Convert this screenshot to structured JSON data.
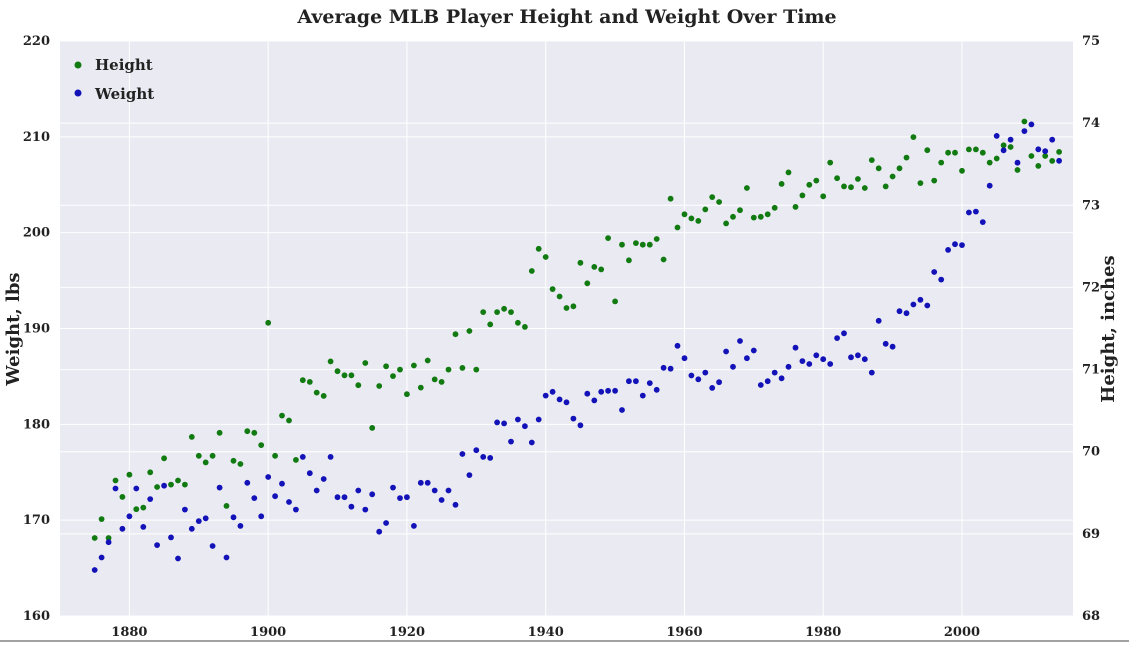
{
  "chart_data": {
    "type": "scatter",
    "title": "Average MLB Player Height and Weight Over Time",
    "xlim": [
      1870,
      2016
    ],
    "x_ticks": [
      1880,
      1900,
      1920,
      1940,
      1960,
      1980,
      2000
    ],
    "y_left": {
      "label": "Weight, lbs",
      "lim": [
        160,
        220
      ],
      "ticks": [
        160,
        170,
        180,
        190,
        200,
        210,
        220
      ]
    },
    "y_right": {
      "label": "Height, inches",
      "lim": [
        68,
        75
      ],
      "ticks": [
        68,
        69,
        70,
        71,
        72,
        73,
        74,
        75
      ]
    },
    "grid": true,
    "legend_position": "top-left",
    "series": [
      {
        "name": "Height",
        "axis": "right",
        "color": "#117A11",
        "x": [
          1875,
          1876,
          1877,
          1878,
          1879,
          1880,
          1881,
          1882,
          1883,
          1884,
          1885,
          1886,
          1887,
          1888,
          1889,
          1890,
          1891,
          1892,
          1893,
          1894,
          1895,
          1896,
          1897,
          1898,
          1899,
          1900,
          1901,
          1902,
          1903,
          1904,
          1905,
          1906,
          1907,
          1908,
          1909,
          1910,
          1911,
          1912,
          1913,
          1914,
          1915,
          1916,
          1917,
          1918,
          1919,
          1920,
          1921,
          1922,
          1923,
          1924,
          1925,
          1926,
          1927,
          1928,
          1929,
          1930,
          1931,
          1932,
          1933,
          1934,
          1935,
          1936,
          1937,
          1938,
          1939,
          1940,
          1941,
          1942,
          1943,
          1944,
          1945,
          1946,
          1947,
          1948,
          1949,
          1950,
          1951,
          1952,
          1953,
          1954,
          1955,
          1956,
          1957,
          1958,
          1959,
          1960,
          1961,
          1962,
          1963,
          1964,
          1965,
          1966,
          1967,
          1968,
          1969,
          1970,
          1971,
          1972,
          1973,
          1974,
          1975,
          1976,
          1977,
          1978,
          1979,
          1980,
          1981,
          1982,
          1983,
          1984,
          1985,
          1986,
          1987,
          1988,
          1989,
          1990,
          1991,
          1992,
          1993,
          1994,
          1995,
          1996,
          1997,
          1998,
          1999,
          2000,
          2001,
          2002,
          2003,
          2004,
          2005,
          2006,
          2007,
          2008,
          2009,
          2010,
          2011,
          2012,
          2013,
          2014
        ],
        "values": [
          68.95,
          69.18,
          68.95,
          69.65,
          69.45,
          69.72,
          69.3,
          69.32,
          69.75,
          69.57,
          69.92,
          69.6,
          69.65,
          69.6,
          70.18,
          69.95,
          69.87,
          69.95,
          70.23,
          69.34,
          69.89,
          69.85,
          70.25,
          70.23,
          70.08,
          71.57,
          69.95,
          70.44,
          70.38,
          69.9,
          70.87,
          70.85,
          70.72,
          70.68,
          71.1,
          70.98,
          70.93,
          70.93,
          70.81,
          71.08,
          70.29,
          70.8,
          71.04,
          70.92,
          71.0,
          70.7,
          71.05,
          70.78,
          71.11,
          70.88,
          70.85,
          71.0,
          71.43,
          71.02,
          71.47,
          71.0,
          71.7,
          71.55,
          71.7,
          71.74,
          71.7,
          71.57,
          71.52,
          72.2,
          72.47,
          72.37,
          71.98,
          71.89,
          71.75,
          71.77,
          72.3,
          72.05,
          72.25,
          72.22,
          72.6,
          71.83,
          72.52,
          72.33,
          72.54,
          72.52,
          72.52,
          72.59,
          72.34,
          73.08,
          72.73,
          72.89,
          72.84,
          72.81,
          72.95,
          73.1,
          73.04,
          72.78,
          72.86,
          72.94,
          73.21,
          72.85,
          72.86,
          72.89,
          72.97,
          73.26,
          73.4,
          72.98,
          73.12,
          73.25,
          73.3,
          73.11,
          73.52,
          73.33,
          73.23,
          73.22,
          73.32,
          73.21,
          73.55,
          73.45,
          73.23,
          73.35,
          73.45,
          73.58,
          73.83,
          73.27,
          73.67,
          73.3,
          73.52,
          73.64,
          73.64,
          73.42,
          73.68,
          73.68,
          73.64,
          73.52,
          73.57,
          73.73,
          73.71,
          73.43,
          74.02,
          73.6,
          73.48,
          73.6,
          73.54,
          73.65
        ]
      },
      {
        "name": "Weight",
        "axis": "left",
        "color": "#1212B8",
        "x": [
          1875,
          1876,
          1877,
          1878,
          1879,
          1880,
          1881,
          1882,
          1883,
          1884,
          1885,
          1886,
          1887,
          1888,
          1889,
          1890,
          1891,
          1892,
          1893,
          1894,
          1895,
          1896,
          1897,
          1898,
          1899,
          1900,
          1901,
          1902,
          1903,
          1904,
          1905,
          1906,
          1907,
          1908,
          1909,
          1910,
          1911,
          1912,
          1913,
          1914,
          1915,
          1916,
          1917,
          1918,
          1919,
          1920,
          1921,
          1922,
          1923,
          1924,
          1925,
          1926,
          1927,
          1928,
          1929,
          1930,
          1931,
          1932,
          1933,
          1934,
          1935,
          1936,
          1937,
          1938,
          1939,
          1940,
          1941,
          1942,
          1943,
          1944,
          1945,
          1946,
          1947,
          1948,
          1949,
          1950,
          1951,
          1952,
          1953,
          1954,
          1955,
          1956,
          1957,
          1958,
          1959,
          1960,
          1961,
          1962,
          1963,
          1964,
          1965,
          1966,
          1967,
          1968,
          1969,
          1970,
          1971,
          1972,
          1973,
          1974,
          1975,
          1976,
          1977,
          1978,
          1979,
          1980,
          1981,
          1982,
          1983,
          1984,
          1985,
          1986,
          1987,
          1988,
          1989,
          1990,
          1991,
          1992,
          1993,
          1994,
          1995,
          1996,
          1997,
          1998,
          1999,
          2000,
          2001,
          2002,
          2003,
          2004,
          2005,
          2006,
          2007,
          2008,
          2009,
          2010,
          2011,
          2012,
          2013,
          2014
        ],
        "values": [
          164.8,
          166.1,
          167.7,
          173.3,
          169.1,
          170.4,
          173.3,
          169.3,
          172.2,
          167.4,
          173.6,
          168.2,
          166.0,
          171.1,
          169.1,
          169.9,
          170.2,
          167.3,
          173.4,
          166.1,
          170.3,
          169.4,
          173.9,
          172.3,
          170.4,
          174.5,
          172.5,
          173.8,
          171.9,
          171.1,
          176.6,
          174.9,
          173.1,
          174.3,
          176.6,
          172.4,
          172.4,
          171.4,
          173.1,
          171.1,
          172.7,
          168.8,
          169.7,
          173.4,
          172.3,
          172.4,
          169.4,
          173.9,
          173.9,
          173.1,
          172.1,
          173.1,
          171.6,
          176.9,
          174.7,
          177.3,
          176.6,
          176.5,
          180.2,
          180.1,
          178.2,
          180.5,
          179.8,
          178.1,
          180.5,
          183.0,
          183.4,
          182.6,
          182.3,
          180.6,
          179.9,
          183.2,
          182.5,
          183.4,
          183.5,
          183.5,
          181.5,
          184.5,
          184.5,
          183.0,
          184.3,
          183.6,
          185.9,
          185.8,
          188.2,
          186.9,
          185.1,
          184.7,
          185.4,
          183.8,
          184.4,
          187.6,
          186.0,
          188.7,
          186.9,
          187.7,
          184.1,
          184.5,
          185.4,
          184.8,
          186.0,
          188.0,
          186.6,
          186.3,
          187.2,
          186.8,
          186.3,
          189.0,
          189.5,
          187.0,
          187.2,
          186.8,
          185.4,
          190.8,
          188.4,
          188.1,
          191.8,
          191.6,
          192.5,
          193.0,
          192.4,
          195.9,
          195.1,
          198.2,
          198.8,
          198.7,
          202.1,
          202.2,
          201.1,
          204.9,
          210.1,
          208.6,
          209.7,
          207.3,
          210.6,
          211.3,
          208.7,
          208.5,
          209.7,
          207.5
        ]
      }
    ]
  }
}
